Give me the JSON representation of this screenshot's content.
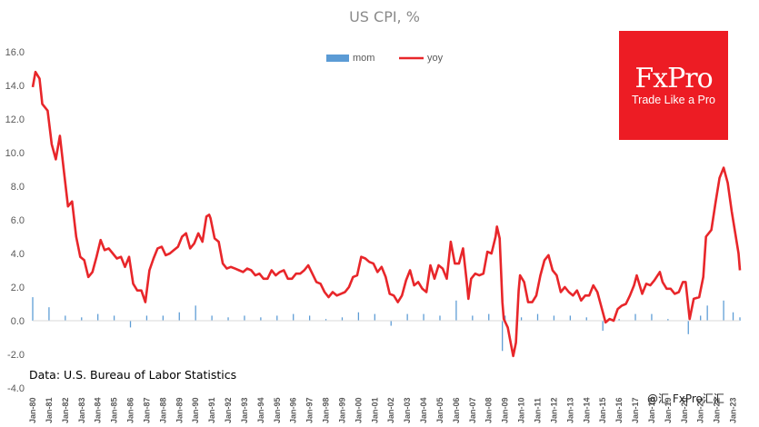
{
  "chart_data": {
    "type": "bar+line",
    "title": "US CPI, %",
    "source": "Data: U.S. Bureau of Labor Statistics",
    "watermark": "@汇 FxPro汇汇",
    "logo": {
      "name": "FxPro",
      "tagline": "Trade Like a Pro",
      "color": "#ED1C24"
    },
    "legend": {
      "position": "top-center",
      "entries": [
        "mom",
        "yoy"
      ]
    },
    "colors": {
      "mom": "#5B9BD5",
      "yoy": "#E8262A"
    },
    "ylim": [
      -4,
      16
    ],
    "yticks": [
      "-4.0",
      "-2.0",
      "0.0",
      "2.0",
      "4.0",
      "6.0",
      "8.0",
      "10.0",
      "12.0",
      "14.0",
      "16.0"
    ],
    "x_start": "Jan-80",
    "x_end": "Jun-23",
    "xticks": [
      "Jan-80",
      "Jan-81",
      "Jan-82",
      "Jan-83",
      "Jan-84",
      "Jan-85",
      "Jan-86",
      "Jan-87",
      "Jan-88",
      "Jan-89",
      "Jan-90",
      "Jan-91",
      "Jan-92",
      "Jan-93",
      "Jan-94",
      "Jan-95",
      "Jan-96",
      "Jan-97",
      "Jan-98",
      "Jan-99",
      "Jan-00",
      "Jan-01",
      "Jan-02",
      "Jan-03",
      "Jan-04",
      "Jan-05",
      "Jan-06",
      "Jan-07",
      "Jan-08",
      "Jan-09",
      "Jan-10",
      "Jan-11",
      "Jan-12",
      "Jan-13",
      "Jan-14",
      "Jan-15",
      "Jan-16",
      "Jan-17",
      "Jan-18",
      "Jan-19",
      "Jan-20",
      "Jan-21",
      "Jan-22",
      "Jan-23"
    ],
    "grid": false,
    "series": [
      {
        "name": "yoy",
        "type": "line",
        "points": [
          [
            "Jan-80",
            13.9
          ],
          [
            "Mar-80",
            14.8
          ],
          [
            "Jun-80",
            14.4
          ],
          [
            "Aug-80",
            12.9
          ],
          [
            "Dec-80",
            12.5
          ],
          [
            "Mar-81",
            10.5
          ],
          [
            "Jun-81",
            9.6
          ],
          [
            "Sep-81",
            11.0
          ],
          [
            "Dec-81",
            8.9
          ],
          [
            "Mar-82",
            6.8
          ],
          [
            "Jun-82",
            7.1
          ],
          [
            "Sep-82",
            5.0
          ],
          [
            "Dec-82",
            3.8
          ],
          [
            "Mar-83",
            3.6
          ],
          [
            "Jun-83",
            2.6
          ],
          [
            "Sep-83",
            2.9
          ],
          [
            "Dec-83",
            3.8
          ],
          [
            "Mar-84",
            4.8
          ],
          [
            "Jun-84",
            4.2
          ],
          [
            "Sep-84",
            4.3
          ],
          [
            "Dec-84",
            4.0
          ],
          [
            "Mar-85",
            3.7
          ],
          [
            "Jun-85",
            3.8
          ],
          [
            "Sep-85",
            3.2
          ],
          [
            "Dec-85",
            3.8
          ],
          [
            "Mar-86",
            2.2
          ],
          [
            "Jun-86",
            1.8
          ],
          [
            "Sep-86",
            1.8
          ],
          [
            "Dec-86",
            1.1
          ],
          [
            "Mar-87",
            3.0
          ],
          [
            "Jun-87",
            3.7
          ],
          [
            "Sep-87",
            4.3
          ],
          [
            "Dec-87",
            4.4
          ],
          [
            "Mar-88",
            3.9
          ],
          [
            "Jun-88",
            4.0
          ],
          [
            "Sep-88",
            4.2
          ],
          [
            "Dec-88",
            4.4
          ],
          [
            "Mar-89",
            5.0
          ],
          [
            "Jun-89",
            5.2
          ],
          [
            "Sep-89",
            4.3
          ],
          [
            "Dec-89",
            4.6
          ],
          [
            "Mar-90",
            5.2
          ],
          [
            "Jun-90",
            4.7
          ],
          [
            "Sep-90",
            6.2
          ],
          [
            "Nov-90",
            6.3
          ],
          [
            "Dec-90",
            6.1
          ],
          [
            "Mar-91",
            4.9
          ],
          [
            "Jun-91",
            4.7
          ],
          [
            "Sep-91",
            3.4
          ],
          [
            "Dec-91",
            3.1
          ],
          [
            "Mar-92",
            3.2
          ],
          [
            "Jun-92",
            3.1
          ],
          [
            "Sep-92",
            3.0
          ],
          [
            "Dec-92",
            2.9
          ],
          [
            "Mar-93",
            3.1
          ],
          [
            "Jun-93",
            3.0
          ],
          [
            "Sep-93",
            2.7
          ],
          [
            "Dec-93",
            2.8
          ],
          [
            "Mar-94",
            2.5
          ],
          [
            "Jun-94",
            2.5
          ],
          [
            "Sep-94",
            3.0
          ],
          [
            "Dec-94",
            2.7
          ],
          [
            "Mar-95",
            2.9
          ],
          [
            "Jun-95",
            3.0
          ],
          [
            "Sep-95",
            2.5
          ],
          [
            "Dec-95",
            2.5
          ],
          [
            "Mar-96",
            2.8
          ],
          [
            "Jun-96",
            2.8
          ],
          [
            "Sep-96",
            3.0
          ],
          [
            "Dec-96",
            3.3
          ],
          [
            "Mar-97",
            2.8
          ],
          [
            "Jun-97",
            2.3
          ],
          [
            "Sep-97",
            2.2
          ],
          [
            "Dec-97",
            1.7
          ],
          [
            "Mar-98",
            1.4
          ],
          [
            "Jun-98",
            1.7
          ],
          [
            "Sep-98",
            1.5
          ],
          [
            "Dec-98",
            1.6
          ],
          [
            "Mar-99",
            1.7
          ],
          [
            "Jun-99",
            2.0
          ],
          [
            "Sep-99",
            2.6
          ],
          [
            "Dec-99",
            2.7
          ],
          [
            "Mar-00",
            3.8
          ],
          [
            "Jun-00",
            3.7
          ],
          [
            "Sep-00",
            3.5
          ],
          [
            "Dec-00",
            3.4
          ],
          [
            "Mar-01",
            2.9
          ],
          [
            "Jun-01",
            3.2
          ],
          [
            "Sep-01",
            2.6
          ],
          [
            "Dec-01",
            1.6
          ],
          [
            "Mar-02",
            1.5
          ],
          [
            "Jun-02",
            1.1
          ],
          [
            "Sep-02",
            1.5
          ],
          [
            "Dec-02",
            2.4
          ],
          [
            "Mar-03",
            3.0
          ],
          [
            "Jun-03",
            2.1
          ],
          [
            "Sep-03",
            2.3
          ],
          [
            "Dec-03",
            1.9
          ],
          [
            "Mar-04",
            1.7
          ],
          [
            "Jun-04",
            3.3
          ],
          [
            "Sep-04",
            2.5
          ],
          [
            "Dec-04",
            3.3
          ],
          [
            "Mar-05",
            3.1
          ],
          [
            "Jun-05",
            2.5
          ],
          [
            "Sep-05",
            4.7
          ],
          [
            "Dec-05",
            3.4
          ],
          [
            "Mar-06",
            3.4
          ],
          [
            "Jun-06",
            4.3
          ],
          [
            "Sep-06",
            2.1
          ],
          [
            "Oct-06",
            1.3
          ],
          [
            "Dec-06",
            2.5
          ],
          [
            "Mar-07",
            2.8
          ],
          [
            "Jun-07",
            2.7
          ],
          [
            "Sep-07",
            2.8
          ],
          [
            "Dec-07",
            4.1
          ],
          [
            "Mar-08",
            4.0
          ],
          [
            "Jun-08",
            5.0
          ],
          [
            "Jul-08",
            5.6
          ],
          [
            "Sep-08",
            4.9
          ],
          [
            "Nov-08",
            1.1
          ],
          [
            "Dec-08",
            0.1
          ],
          [
            "Mar-09",
            -0.4
          ],
          [
            "Jul-09",
            -2.1
          ],
          [
            "Sep-09",
            -1.3
          ],
          [
            "Nov-09",
            1.8
          ],
          [
            "Dec-09",
            2.7
          ],
          [
            "Mar-10",
            2.3
          ],
          [
            "Jun-10",
            1.1
          ],
          [
            "Sep-10",
            1.1
          ],
          [
            "Dec-10",
            1.5
          ],
          [
            "Mar-11",
            2.7
          ],
          [
            "Jun-11",
            3.6
          ],
          [
            "Sep-11",
            3.9
          ],
          [
            "Dec-11",
            3.0
          ],
          [
            "Mar-12",
            2.7
          ],
          [
            "Jun-12",
            1.7
          ],
          [
            "Sep-12",
            2.0
          ],
          [
            "Dec-12",
            1.7
          ],
          [
            "Mar-13",
            1.5
          ],
          [
            "Jun-13",
            1.8
          ],
          [
            "Sep-13",
            1.2
          ],
          [
            "Dec-13",
            1.5
          ],
          [
            "Mar-14",
            1.5
          ],
          [
            "Jun-14",
            2.1
          ],
          [
            "Sep-14",
            1.7
          ],
          [
            "Dec-14",
            0.8
          ],
          [
            "Mar-15",
            -0.1
          ],
          [
            "Jun-15",
            0.1
          ],
          [
            "Sep-15",
            0.0
          ],
          [
            "Dec-15",
            0.7
          ],
          [
            "Mar-16",
            0.9
          ],
          [
            "Jun-16",
            1.0
          ],
          [
            "Sep-16",
            1.5
          ],
          [
            "Dec-16",
            2.1
          ],
          [
            "Feb-17",
            2.7
          ],
          [
            "Jun-17",
            1.6
          ],
          [
            "Sep-17",
            2.2
          ],
          [
            "Dec-17",
            2.1
          ],
          [
            "Mar-18",
            2.4
          ],
          [
            "Jul-18",
            2.9
          ],
          [
            "Sep-18",
            2.3
          ],
          [
            "Dec-18",
            1.9
          ],
          [
            "Mar-19",
            1.9
          ],
          [
            "Jun-19",
            1.6
          ],
          [
            "Sep-19",
            1.7
          ],
          [
            "Dec-19",
            2.3
          ],
          [
            "Feb-20",
            2.3
          ],
          [
            "May-20",
            0.1
          ],
          [
            "Aug-20",
            1.3
          ],
          [
            "Dec-20",
            1.4
          ],
          [
            "Mar-21",
            2.6
          ],
          [
            "May-21",
            5.0
          ],
          [
            "Sep-21",
            5.4
          ],
          [
            "Dec-21",
            7.0
          ],
          [
            "Mar-22",
            8.5
          ],
          [
            "Jun-22",
            9.1
          ],
          [
            "Sep-22",
            8.2
          ],
          [
            "Dec-22",
            6.5
          ],
          [
            "Mar-23",
            5.0
          ],
          [
            "May-23",
            4.0
          ],
          [
            "Jun-23",
            3.0
          ]
        ]
      },
      {
        "name": "mom",
        "type": "bar",
        "points": [
          [
            "Jan-80",
            1.4
          ],
          [
            "Jan-81",
            0.8
          ],
          [
            "Jan-82",
            0.3
          ],
          [
            "Jan-83",
            0.2
          ],
          [
            "Jan-84",
            0.4
          ],
          [
            "Jan-85",
            0.3
          ],
          [
            "Jan-86",
            -0.4
          ],
          [
            "Jan-87",
            0.3
          ],
          [
            "Jan-88",
            0.3
          ],
          [
            "Jan-89",
            0.5
          ],
          [
            "Jan-90",
            0.9
          ],
          [
            "Jan-91",
            0.3
          ],
          [
            "Jan-92",
            0.2
          ],
          [
            "Jan-93",
            0.3
          ],
          [
            "Jan-94",
            0.2
          ],
          [
            "Jan-95",
            0.3
          ],
          [
            "Jan-96",
            0.4
          ],
          [
            "Jan-97",
            0.3
          ],
          [
            "Jan-98",
            0.1
          ],
          [
            "Jan-99",
            0.2
          ],
          [
            "Jan-00",
            0.5
          ],
          [
            "Jan-01",
            0.4
          ],
          [
            "Jan-02",
            -0.3
          ],
          [
            "Jan-03",
            0.4
          ],
          [
            "Jan-04",
            0.4
          ],
          [
            "Jan-05",
            0.3
          ],
          [
            "Jan-06",
            1.2
          ],
          [
            "Jan-07",
            0.3
          ],
          [
            "Jan-08",
            0.4
          ],
          [
            "Nov-08",
            -1.8
          ],
          [
            "Jan-09",
            0.3
          ],
          [
            "Jan-10",
            0.2
          ],
          [
            "Jan-11",
            0.4
          ],
          [
            "Jan-12",
            0.3
          ],
          [
            "Jan-13",
            0.3
          ],
          [
            "Jan-14",
            0.2
          ],
          [
            "Jan-15",
            -0.6
          ],
          [
            "Jan-16",
            0.1
          ],
          [
            "Jan-17",
            0.4
          ],
          [
            "Jan-18",
            0.4
          ],
          [
            "Jan-19",
            0.1
          ],
          [
            "Apr-20",
            -0.8
          ],
          [
            "Jan-21",
            0.3
          ],
          [
            "Jun-21",
            0.9
          ],
          [
            "Jun-22",
            1.2
          ],
          [
            "Jan-23",
            0.5
          ],
          [
            "Jun-23",
            0.2
          ]
        ]
      }
    ]
  }
}
